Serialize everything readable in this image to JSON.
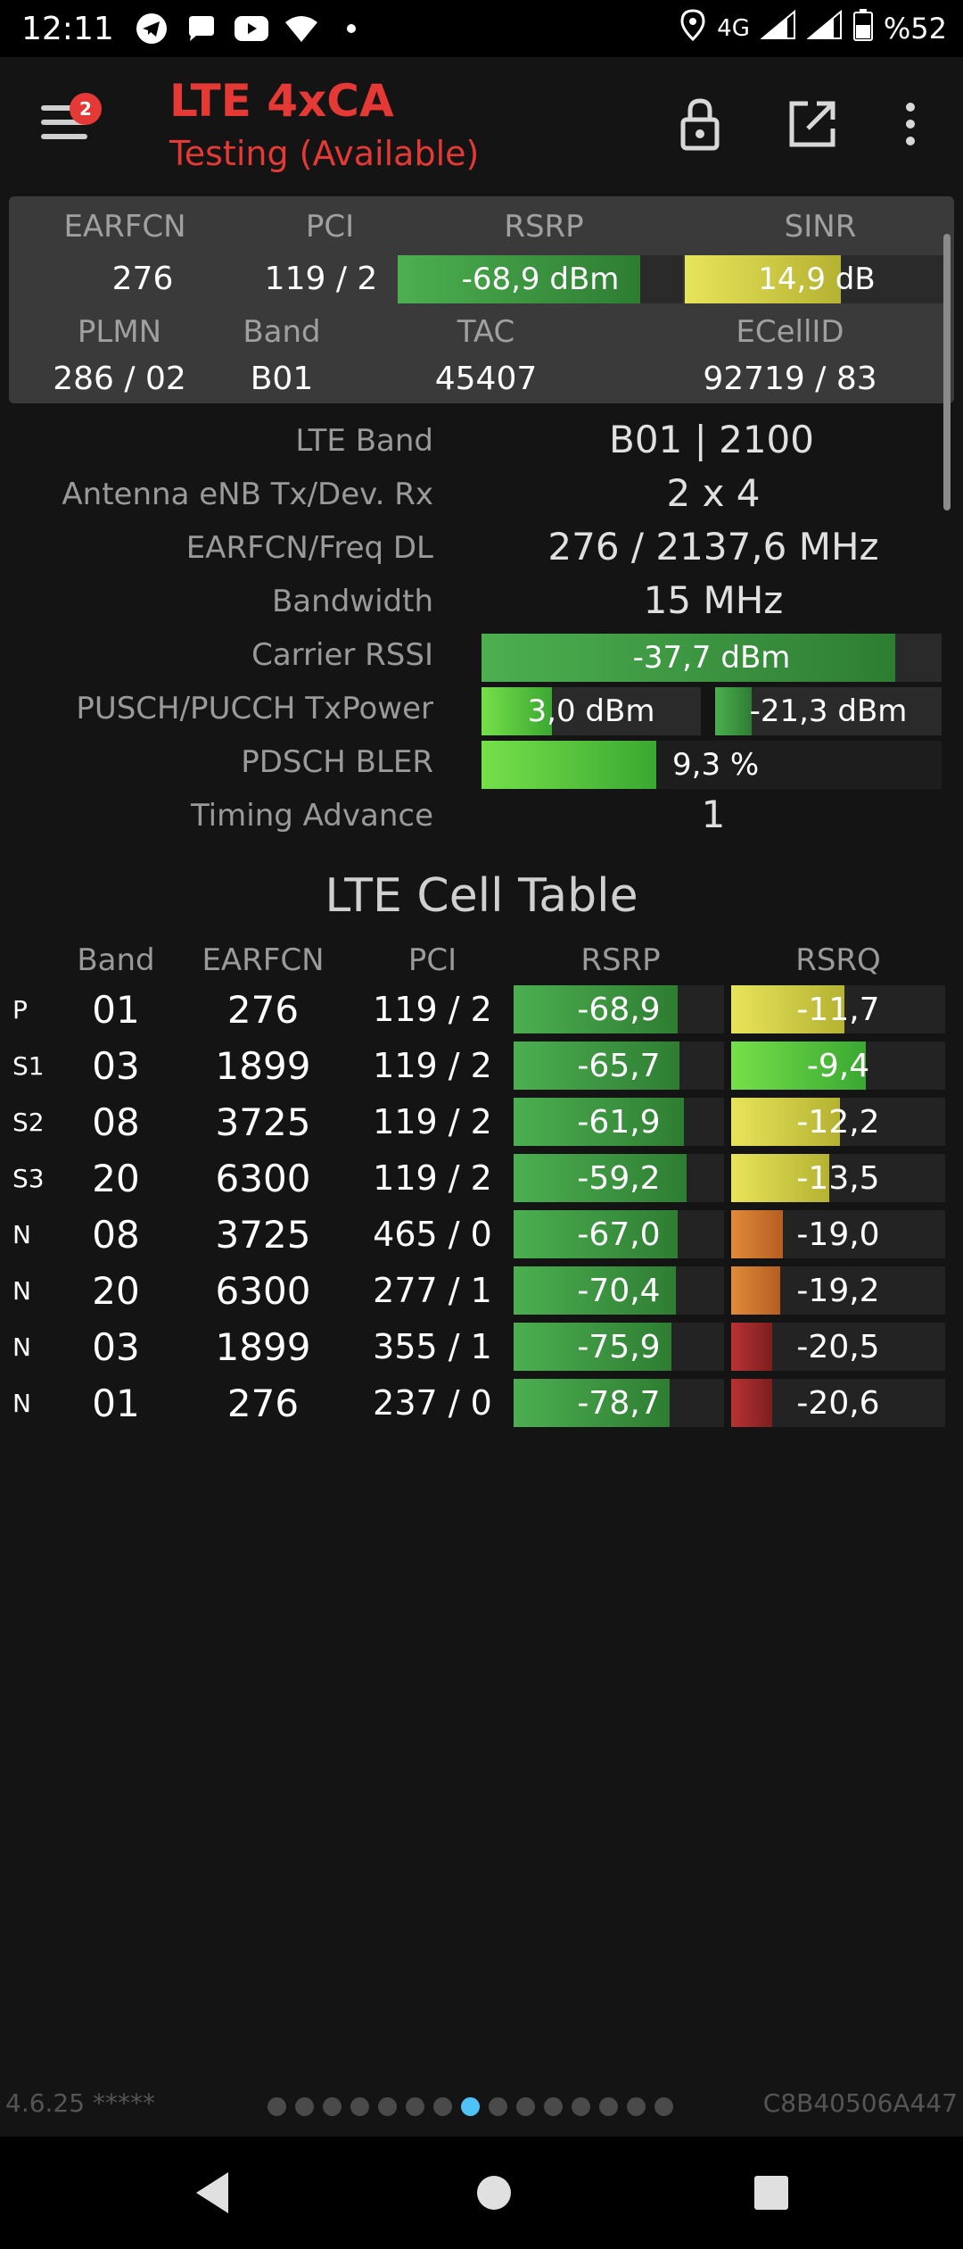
{
  "status_bar": {
    "time": "12:11",
    "network": "4G",
    "battery": "%52",
    "icons": [
      "telegram-icon",
      "chat-icon",
      "youtube-icon",
      "wifi-icon",
      "dot-icon",
      "location-icon",
      "signal-icon",
      "signal-icon",
      "battery-icon"
    ]
  },
  "app_bar": {
    "badge": "2",
    "title": "LTE 4xCA",
    "subtitle": "Testing (Available)"
  },
  "header": {
    "labels": {
      "earfcn": "EARFCN",
      "pci": "PCI",
      "rsrp": "RSRP",
      "sinr": "SINR",
      "plmn": "PLMN",
      "band": "Band",
      "tac": "TAC",
      "ecellid": "ECellID"
    },
    "values": {
      "earfcn": "276",
      "pci": "119 / 2",
      "rsrp": "-68,9 dBm",
      "sinr": "14,9 dB",
      "plmn": "286 / 02",
      "band": "B01",
      "tac": "45407",
      "ecellid": "92719 / 83"
    },
    "rsrp_fill": 0.85,
    "sinr_fill": 0.59
  },
  "details": {
    "lte_band_label": "LTE Band",
    "lte_band": "B01 | 2100",
    "antenna_label": "Antenna eNB Tx/Dev. Rx",
    "antenna": "2 x 4",
    "earfcn_freq_label": "EARFCN/Freq DL",
    "earfcn_freq": "276 / 2137,6 MHz",
    "bandwidth_label": "Bandwidth",
    "bandwidth": "15 MHz",
    "rssi_label": "Carrier RSSI",
    "rssi": "-37,7 dBm",
    "rssi_fill": 0.9,
    "txpower_label": "PUSCH/PUCCH TxPower",
    "pusch": "3,0 dBm",
    "pusch_fill": 0.32,
    "pucch": "-21,3 dBm",
    "pucch_fill": 0.16,
    "bler_label": "PDSCH BLER",
    "bler": "9,3 %",
    "bler_fill": 0.38,
    "ta_label": "Timing Advance",
    "ta": "1"
  },
  "table": {
    "title": "LTE Cell Table",
    "headers": {
      "band": "Band",
      "earfcn": "EARFCN",
      "pci": "PCI",
      "rsrp": "RSRP",
      "rsrq": "RSRQ"
    },
    "rows": [
      {
        "type": "P",
        "band": "01",
        "earfcn": "276",
        "pci": "119 / 2",
        "rsrp": "-68,9",
        "rsrp_fill": 0.78,
        "rsrq": "-11,7",
        "rsrq_fill": 0.53,
        "rsrq_color": "yellow"
      },
      {
        "type": "S1",
        "band": "03",
        "earfcn": "1899",
        "pci": "119 / 2",
        "rsrp": "-65,7",
        "rsrp_fill": 0.79,
        "rsrq": "-9,4",
        "rsrq_fill": 0.63,
        "rsrq_color": "green"
      },
      {
        "type": "S2",
        "band": "08",
        "earfcn": "3725",
        "pci": "119 / 2",
        "rsrp": "-61,9",
        "rsrp_fill": 0.81,
        "rsrq": "-12,2",
        "rsrq_fill": 0.51,
        "rsrq_color": "yellow"
      },
      {
        "type": "S3",
        "band": "20",
        "earfcn": "6300",
        "pci": "119 / 2",
        "rsrp": "-59,2",
        "rsrp_fill": 0.82,
        "rsrq": "-13,5",
        "rsrq_fill": 0.46,
        "rsrq_color": "yellow"
      },
      {
        "type": "N",
        "band": "08",
        "earfcn": "3725",
        "pci": "465 / 0",
        "rsrp": "-67,0",
        "rsrp_fill": 0.78,
        "rsrq": "-19,0",
        "rsrq_fill": 0.24,
        "rsrq_color": "orange"
      },
      {
        "type": "N",
        "band": "20",
        "earfcn": "6300",
        "pci": "277 / 1",
        "rsrp": "-70,4",
        "rsrp_fill": 0.77,
        "rsrq": "-19,2",
        "rsrq_fill": 0.23,
        "rsrq_color": "orange"
      },
      {
        "type": "N",
        "band": "03",
        "earfcn": "1899",
        "pci": "355 / 1",
        "rsrp": "-75,9",
        "rsrp_fill": 0.75,
        "rsrq": "-20,5",
        "rsrq_fill": 0.19,
        "rsrq_color": "red"
      },
      {
        "type": "N",
        "band": "01",
        "earfcn": "276",
        "pci": "237 / 0",
        "rsrp": "-78,7",
        "rsrp_fill": 0.74,
        "rsrq": "-20,6",
        "rsrq_fill": 0.19,
        "rsrq_color": "red"
      }
    ]
  },
  "footer": {
    "version": "4.6.25 *****",
    "device_id": "C8B40506A447",
    "page_count": 15,
    "active_page": 8
  }
}
